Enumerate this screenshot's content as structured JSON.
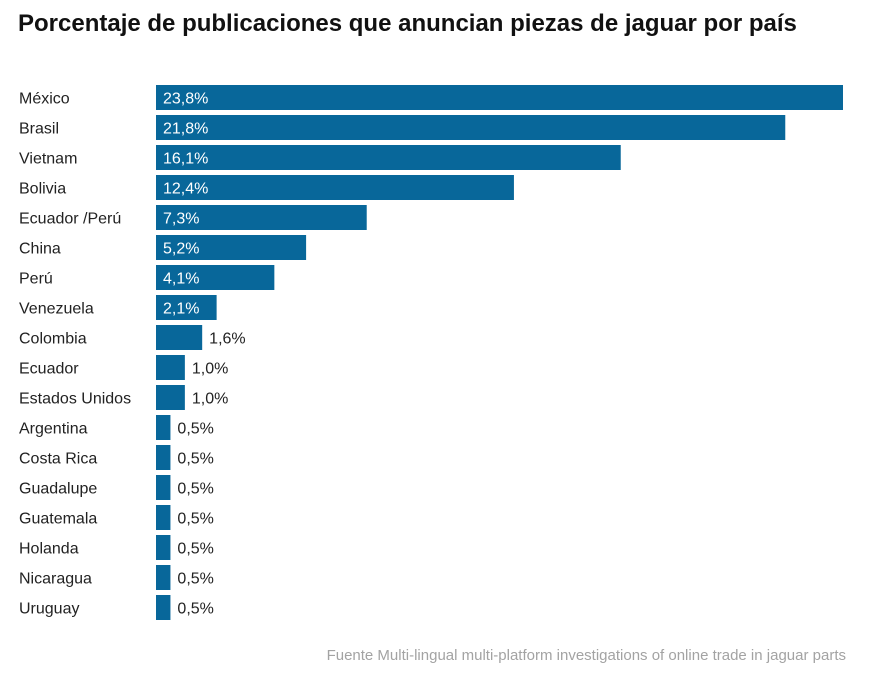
{
  "chart_data": {
    "type": "bar",
    "orientation": "horizontal",
    "title": "Porcentaje de publicaciones que anuncian piezas de jaguar por país",
    "categories": [
      "México",
      "Brasil",
      "Vietnam",
      "Bolivia",
      "Ecuador /Perú",
      "China",
      "Perú",
      "Venezuela",
      "Colombia",
      "Ecuador",
      "Estados Unidos",
      "Argentina",
      "Costa Rica",
      "Guadalupe",
      "Guatemala",
      "Holanda",
      "Nicaragua",
      "Uruguay"
    ],
    "values": [
      23.8,
      21.8,
      16.1,
      12.4,
      7.3,
      5.2,
      4.1,
      2.1,
      1.6,
      1.0,
      1.0,
      0.5,
      0.5,
      0.5,
      0.5,
      0.5,
      0.5,
      0.5
    ],
    "value_labels": [
      "23,8%",
      "21,8%",
      "16,1%",
      "12,4%",
      "7,3%",
      "5,2%",
      "4,1%",
      "2,1%",
      "1,6%",
      "1,0%",
      "1,0%",
      "0,5%",
      "0,5%",
      "0,5%",
      "0,5%",
      "0,5%",
      "0,5%",
      "0,5%"
    ],
    "xlim": [
      0,
      23.8
    ],
    "grid": false,
    "bar_color": "#08679a",
    "source": "Fuente Multi-lingual multi-platform investigations of online trade in jaguar parts"
  }
}
